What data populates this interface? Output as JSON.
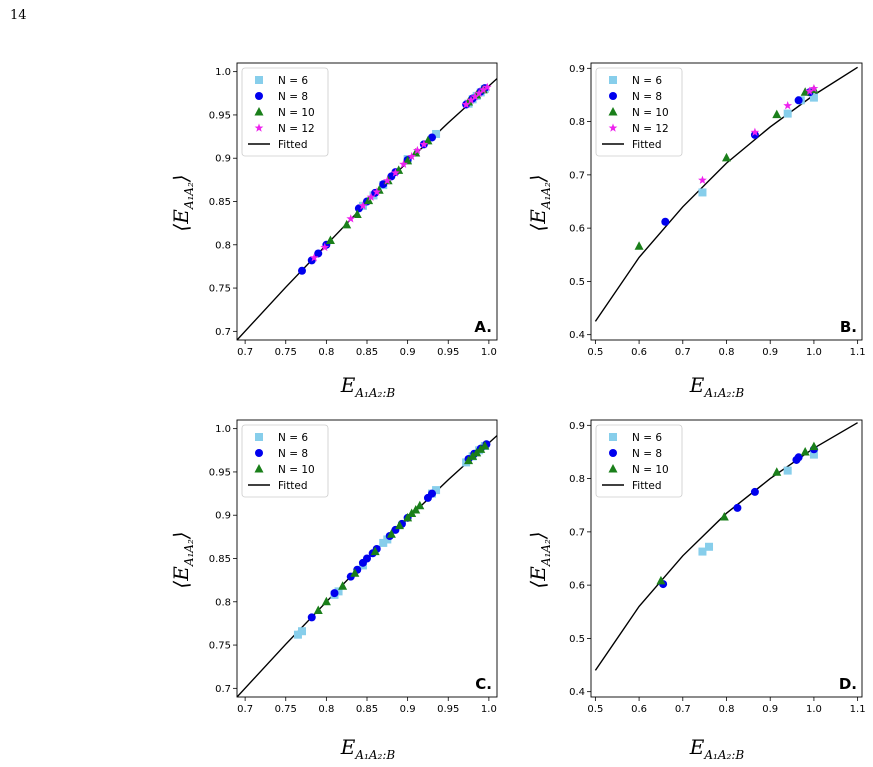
{
  "page": {
    "number": "14"
  },
  "colors": {
    "N6": "#87ceeb",
    "N8": "#0000ee",
    "N10": "#1a7f1a",
    "N12": "#ee22ee",
    "fit": "#000000"
  },
  "labels": {
    "x": {
      "main": "E",
      "sub": "A₁A₂:B"
    },
    "y": {
      "open": "⟨",
      "main": "E",
      "sub": "A₁A₂",
      "close": "⟩"
    }
  },
  "chart_data": [
    {
      "type": "scatter",
      "panel_label": "A.",
      "xlim": [
        0.69,
        1.01
      ],
      "ylim": [
        0.69,
        1.01
      ],
      "xticks": [
        "0.7",
        "0.75",
        "0.8",
        "0.85",
        "0.9",
        "0.95",
        "1.0"
      ],
      "xtick_values": [
        0.7,
        0.75,
        0.8,
        0.85,
        0.9,
        0.95,
        1.0
      ],
      "yticks": [
        "0.7",
        "0.75",
        "0.8",
        "0.85",
        "0.9",
        "0.95",
        "1.0"
      ],
      "ytick_values": [
        0.7,
        0.75,
        0.8,
        0.85,
        0.9,
        0.95,
        1.0
      ],
      "legend": {
        "position": "top-left",
        "entries": [
          "N = 6",
          "N = 8",
          "N = 10",
          "N = 12",
          "Fitted"
        ]
      },
      "series": [
        {
          "name": "N = 6",
          "marker": "square",
          "color": "#87ceeb",
          "points": [
            [
              0.845,
              0.845
            ],
            [
              0.858,
              0.857
            ],
            [
              0.87,
              0.869
            ],
            [
              0.9,
              0.899
            ],
            [
              0.935,
              0.928
            ],
            [
              0.975,
              0.963
            ],
            [
              0.98,
              0.968
            ],
            [
              0.985,
              0.972
            ],
            [
              0.99,
              0.976
            ],
            [
              0.995,
              0.98
            ]
          ]
        },
        {
          "name": "N = 8",
          "marker": "circle",
          "color": "#0000ee",
          "points": [
            [
              0.77,
              0.77
            ],
            [
              0.782,
              0.782
            ],
            [
              0.79,
              0.79
            ],
            [
              0.8,
              0.8
            ],
            [
              0.84,
              0.842
            ],
            [
              0.85,
              0.85
            ],
            [
              0.86,
              0.86
            ],
            [
              0.87,
              0.87
            ],
            [
              0.88,
              0.879
            ],
            [
              0.885,
              0.884
            ],
            [
              0.9,
              0.898
            ],
            [
              0.92,
              0.916
            ],
            [
              0.93,
              0.924
            ],
            [
              0.972,
              0.962
            ],
            [
              0.98,
              0.969
            ],
            [
              0.99,
              0.977
            ],
            [
              0.995,
              0.981
            ]
          ]
        },
        {
          "name": "N = 10",
          "marker": "triangle",
          "color": "#1a7f1a",
          "points": [
            [
              0.805,
              0.805
            ],
            [
              0.825,
              0.823
            ],
            [
              0.838,
              0.835
            ],
            [
              0.852,
              0.851
            ],
            [
              0.865,
              0.863
            ],
            [
              0.876,
              0.874
            ],
            [
              0.889,
              0.886
            ],
            [
              0.9,
              0.897
            ],
            [
              0.91,
              0.906
            ],
            [
              0.925,
              0.92
            ],
            [
              0.975,
              0.965
            ],
            [
              0.985,
              0.973
            ],
            [
              0.993,
              0.979
            ]
          ]
        },
        {
          "name": "N = 12",
          "marker": "star",
          "color": "#ee22ee",
          "points": [
            [
              0.785,
              0.785
            ],
            [
              0.798,
              0.797
            ],
            [
              0.83,
              0.83
            ],
            [
              0.845,
              0.845
            ],
            [
              0.855,
              0.855
            ],
            [
              0.862,
              0.861
            ],
            [
              0.875,
              0.874
            ],
            [
              0.885,
              0.883
            ],
            [
              0.895,
              0.893
            ],
            [
              0.905,
              0.902
            ],
            [
              0.912,
              0.909
            ],
            [
              0.92,
              0.916
            ],
            [
              0.972,
              0.962
            ],
            [
              0.978,
              0.967
            ],
            [
              0.983,
              0.971
            ],
            [
              0.988,
              0.975
            ],
            [
              0.993,
              0.979
            ],
            [
              0.998,
              0.982
            ]
          ]
        }
      ],
      "fit_line": [
        [
          0.69,
          0.69
        ],
        [
          0.75,
          0.751
        ],
        [
          0.8,
          0.8
        ],
        [
          0.85,
          0.849
        ],
        [
          0.9,
          0.896
        ],
        [
          0.95,
          0.941
        ],
        [
          1.01,
          0.992
        ]
      ]
    },
    {
      "type": "scatter",
      "panel_label": "B.",
      "xlim": [
        0.49,
        1.11
      ],
      "ylim": [
        0.39,
        0.91
      ],
      "xticks": [
        "0.5",
        "0.6",
        "0.7",
        "0.8",
        "0.9",
        "1.0",
        "1.1"
      ],
      "xtick_values": [
        0.5,
        0.6,
        0.7,
        0.8,
        0.9,
        1.0,
        1.1
      ],
      "yticks": [
        "0.4",
        "0.5",
        "0.6",
        "0.7",
        "0.8",
        "0.9"
      ],
      "ytick_values": [
        0.4,
        0.5,
        0.6,
        0.7,
        0.8,
        0.9
      ],
      "legend": {
        "position": "top-left",
        "entries": [
          "N = 6",
          "N = 8",
          "N = 10",
          "N = 12",
          "Fitted"
        ]
      },
      "series": [
        {
          "name": "N = 6",
          "marker": "square",
          "color": "#87ceeb",
          "points": [
            [
              0.745,
              0.667
            ],
            [
              0.94,
              0.815
            ],
            [
              0.97,
              0.84
            ],
            [
              1.0,
              0.845
            ]
          ]
        },
        {
          "name": "N = 8",
          "marker": "circle",
          "color": "#0000ee",
          "points": [
            [
              0.66,
              0.612
            ],
            [
              0.865,
              0.775
            ],
            [
              0.965,
              0.84
            ],
            [
              0.99,
              0.855
            ]
          ]
        },
        {
          "name": "N = 10",
          "marker": "triangle",
          "color": "#1a7f1a",
          "points": [
            [
              0.6,
              0.566
            ],
            [
              0.8,
              0.732
            ],
            [
              0.915,
              0.813
            ],
            [
              0.98,
              0.855
            ],
            [
              1.0,
              0.86
            ]
          ]
        },
        {
          "name": "N = 12",
          "marker": "star",
          "color": "#ee22ee",
          "points": [
            [
              0.745,
              0.69
            ],
            [
              0.865,
              0.78
            ],
            [
              0.94,
              0.83
            ],
            [
              0.99,
              0.857
            ],
            [
              1.0,
              0.862
            ]
          ]
        }
      ],
      "fit_line": [
        [
          0.5,
          0.425
        ],
        [
          0.6,
          0.545
        ],
        [
          0.7,
          0.64
        ],
        [
          0.8,
          0.722
        ],
        [
          0.9,
          0.79
        ],
        [
          1.0,
          0.85
        ],
        [
          1.1,
          0.902
        ]
      ]
    },
    {
      "type": "scatter",
      "panel_label": "C.",
      "xlim": [
        0.69,
        1.01
      ],
      "ylim": [
        0.69,
        1.01
      ],
      "xticks": [
        "0.7",
        "0.75",
        "0.8",
        "0.85",
        "0.9",
        "0.95",
        "1.0"
      ],
      "xtick_values": [
        0.7,
        0.75,
        0.8,
        0.85,
        0.9,
        0.95,
        1.0
      ],
      "yticks": [
        "0.7",
        "0.75",
        "0.8",
        "0.85",
        "0.9",
        "0.95",
        "1.0"
      ],
      "ytick_values": [
        0.7,
        0.75,
        0.8,
        0.85,
        0.9,
        0.95,
        1.0
      ],
      "legend": {
        "position": "top-left",
        "entries": [
          "N = 6",
          "N = 8",
          "N = 10",
          "Fitted"
        ]
      },
      "series": [
        {
          "name": "N = 6",
          "marker": "square",
          "color": "#87ceeb",
          "points": [
            [
              0.765,
              0.762
            ],
            [
              0.77,
              0.766
            ],
            [
              0.81,
              0.808
            ],
            [
              0.815,
              0.812
            ],
            [
              0.845,
              0.842
            ],
            [
              0.87,
              0.868
            ],
            [
              0.875,
              0.872
            ],
            [
              0.93,
              0.925
            ],
            [
              0.935,
              0.929
            ],
            [
              0.972,
              0.961
            ],
            [
              0.98,
              0.968
            ],
            [
              0.988,
              0.975
            ],
            [
              0.995,
              0.98
            ]
          ]
        },
        {
          "name": "N = 8",
          "marker": "circle",
          "color": "#0000ee",
          "points": [
            [
              0.782,
              0.782
            ],
            [
              0.81,
              0.81
            ],
            [
              0.83,
              0.829
            ],
            [
              0.838,
              0.837
            ],
            [
              0.845,
              0.845
            ],
            [
              0.85,
              0.85
            ],
            [
              0.857,
              0.856
            ],
            [
              0.862,
              0.861
            ],
            [
              0.878,
              0.876
            ],
            [
              0.885,
              0.883
            ],
            [
              0.893,
              0.89
            ],
            [
              0.9,
              0.897
            ],
            [
              0.925,
              0.92
            ],
            [
              0.93,
              0.925
            ],
            [
              0.975,
              0.965
            ],
            [
              0.982,
              0.971
            ],
            [
              0.99,
              0.977
            ],
            [
              0.997,
              0.982
            ]
          ]
        },
        {
          "name": "N = 10",
          "marker": "triangle",
          "color": "#1a7f1a",
          "points": [
            [
              0.79,
              0.79
            ],
            [
              0.8,
              0.8
            ],
            [
              0.82,
              0.818
            ],
            [
              0.835,
              0.833
            ],
            [
              0.86,
              0.858
            ],
            [
              0.88,
              0.878
            ],
            [
              0.89,
              0.888
            ],
            [
              0.9,
              0.897
            ],
            [
              0.905,
              0.902
            ],
            [
              0.91,
              0.906
            ],
            [
              0.915,
              0.911
            ],
            [
              0.975,
              0.963
            ],
            [
              0.98,
              0.968
            ],
            [
              0.985,
              0.972
            ],
            [
              0.99,
              0.976
            ],
            [
              0.995,
              0.98
            ]
          ]
        }
      ],
      "fit_line": [
        [
          0.69,
          0.69
        ],
        [
          0.75,
          0.751
        ],
        [
          0.8,
          0.8
        ],
        [
          0.85,
          0.849
        ],
        [
          0.9,
          0.896
        ],
        [
          0.95,
          0.941
        ],
        [
          1.01,
          0.992
        ]
      ]
    },
    {
      "type": "scatter",
      "panel_label": "D.",
      "xlim": [
        0.49,
        1.11
      ],
      "ylim": [
        0.39,
        0.91
      ],
      "xticks": [
        "0.5",
        "0.6",
        "0.7",
        "0.8",
        "0.9",
        "1.0",
        "1.1"
      ],
      "xtick_values": [
        0.5,
        0.6,
        0.7,
        0.8,
        0.9,
        1.0,
        1.1
      ],
      "yticks": [
        "0.4",
        "0.5",
        "0.6",
        "0.7",
        "0.8",
        "0.9"
      ],
      "ytick_values": [
        0.4,
        0.5,
        0.6,
        0.7,
        0.8,
        0.9
      ],
      "legend": {
        "position": "top-left",
        "entries": [
          "N = 6",
          "N = 8",
          "N = 10",
          "Fitted"
        ]
      },
      "series": [
        {
          "name": "N = 6",
          "marker": "square",
          "color": "#87ceeb",
          "points": [
            [
              0.745,
              0.663
            ],
            [
              0.76,
              0.672
            ],
            [
              0.94,
              0.815
            ],
            [
              1.0,
              0.845
            ]
          ]
        },
        {
          "name": "N = 8",
          "marker": "circle",
          "color": "#0000ee",
          "points": [
            [
              0.655,
              0.602
            ],
            [
              0.825,
              0.745
            ],
            [
              0.865,
              0.775
            ],
            [
              0.96,
              0.835
            ],
            [
              0.965,
              0.84
            ],
            [
              1.0,
              0.855
            ]
          ]
        },
        {
          "name": "N = 10",
          "marker": "triangle",
          "color": "#1a7f1a",
          "points": [
            [
              0.65,
              0.608
            ],
            [
              0.795,
              0.728
            ],
            [
              0.915,
              0.812
            ],
            [
              0.98,
              0.85
            ],
            [
              1.0,
              0.86
            ]
          ]
        }
      ],
      "fit_line": [
        [
          0.5,
          0.44
        ],
        [
          0.6,
          0.56
        ],
        [
          0.7,
          0.655
        ],
        [
          0.8,
          0.735
        ],
        [
          0.9,
          0.8
        ],
        [
          1.0,
          0.857
        ],
        [
          1.1,
          0.905
        ]
      ]
    }
  ]
}
